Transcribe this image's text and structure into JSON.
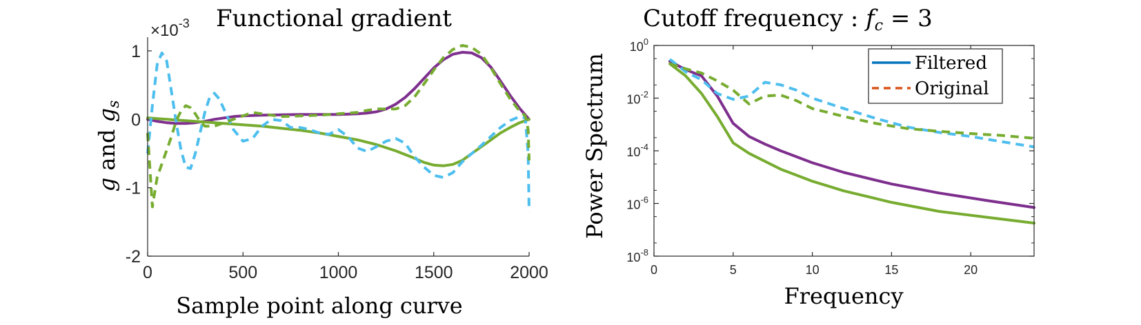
{
  "chart_data": [
    {
      "type": "line",
      "title": "Functional gradient",
      "xlabel": "Sample point along curve",
      "ylabel": "g and g_s",
      "ylabel_main": "g",
      "ylabel_join": " and ",
      "ylabel_sub_base": "g",
      "ylabel_sub": "s",
      "exponent_prefix": "×10",
      "exponent_power": "-3",
      "xlim": [
        0,
        2000
      ],
      "ylim": [
        -2,
        1.2
      ],
      "xticks": [
        0,
        500,
        1000,
        1500,
        2000
      ],
      "xtick_labels": [
        "0",
        "500",
        "1000",
        "1500",
        "2000"
      ],
      "yticks": [
        1,
        0,
        -1,
        -2
      ],
      "ytick_labels": [
        "1",
        "0",
        "-1",
        "-2"
      ],
      "grid": false,
      "series": [
        {
          "color": "#7E2F8E",
          "style": "solid",
          "x": [
            0,
            50,
            100,
            150,
            200,
            250,
            300,
            350,
            400,
            450,
            500,
            600,
            700,
            800,
            900,
            1000,
            1100,
            1150,
            1200,
            1250,
            1300,
            1350,
            1400,
            1450,
            1500,
            1550,
            1600,
            1650,
            1700,
            1750,
            1800,
            1850,
            1900,
            1950,
            2000
          ],
          "y": [
            0.0,
            -0.03,
            -0.05,
            -0.06,
            -0.06,
            -0.05,
            -0.03,
            0.0,
            0.02,
            0.04,
            0.05,
            0.06,
            0.065,
            0.07,
            0.07,
            0.07,
            0.08,
            0.09,
            0.11,
            0.15,
            0.22,
            0.32,
            0.45,
            0.6,
            0.75,
            0.87,
            0.95,
            0.98,
            0.97,
            0.9,
            0.76,
            0.56,
            0.35,
            0.16,
            0.0
          ]
        },
        {
          "color": "#77AC30",
          "style": "solid",
          "x": [
            0,
            100,
            200,
            300,
            400,
            500,
            600,
            700,
            800,
            900,
            1000,
            1100,
            1200,
            1300,
            1400,
            1450,
            1500,
            1550,
            1600,
            1650,
            1700,
            1750,
            1800,
            1850,
            1900,
            1950,
            2000
          ],
          "y": [
            0.02,
            0.0,
            -0.02,
            -0.04,
            -0.06,
            -0.08,
            -0.1,
            -0.13,
            -0.16,
            -0.2,
            -0.25,
            -0.3,
            -0.37,
            -0.46,
            -0.57,
            -0.63,
            -0.67,
            -0.68,
            -0.66,
            -0.6,
            -0.5,
            -0.4,
            -0.3,
            -0.2,
            -0.12,
            -0.05,
            0.0
          ]
        },
        {
          "color": "#4DBEEE",
          "style": "dashed",
          "x": [
            0,
            25,
            50,
            75,
            100,
            125,
            150,
            175,
            200,
            225,
            250,
            275,
            300,
            325,
            350,
            375,
            400,
            450,
            500,
            550,
            600,
            650,
            700,
            750,
            800,
            850,
            900,
            950,
            1000,
            1050,
            1100,
            1150,
            1200,
            1250,
            1300,
            1350,
            1400,
            1450,
            1500,
            1550,
            1600,
            1650,
            1700,
            1750,
            1800,
            1850,
            1900,
            1950,
            1980,
            1995,
            2000
          ],
          "y": [
            -0.5,
            0.2,
            0.8,
            0.97,
            0.85,
            0.4,
            -0.05,
            -0.45,
            -0.7,
            -0.72,
            -0.5,
            -0.2,
            0.1,
            0.32,
            0.38,
            0.3,
            0.15,
            -0.15,
            -0.32,
            -0.28,
            -0.1,
            0.0,
            -0.02,
            -0.12,
            -0.12,
            -0.15,
            -0.2,
            -0.22,
            -0.15,
            -0.25,
            -0.42,
            -0.47,
            -0.4,
            -0.32,
            -0.28,
            -0.35,
            -0.55,
            -0.7,
            -0.82,
            -0.85,
            -0.78,
            -0.62,
            -0.5,
            -0.38,
            -0.25,
            -0.12,
            -0.02,
            0.04,
            0.02,
            -0.5,
            -1.35
          ]
        },
        {
          "color": "#77AC30",
          "style": "dashed",
          "x": [
            0,
            25,
            50,
            75,
            100,
            125,
            150,
            175,
            200,
            225,
            250,
            275,
            300,
            350,
            400,
            450,
            500,
            550,
            600,
            700,
            800,
            900,
            1000,
            1100,
            1150,
            1200,
            1250,
            1300,
            1350,
            1400,
            1450,
            1500,
            1550,
            1600,
            1650,
            1700,
            1750,
            1800,
            1850,
            1900,
            1950,
            1980,
            1995,
            2000
          ],
          "y": [
            -0.2,
            -1.28,
            -0.85,
            -0.65,
            -0.45,
            -0.25,
            -0.02,
            0.12,
            0.2,
            0.17,
            0.08,
            -0.03,
            -0.1,
            -0.1,
            -0.05,
            0.0,
            0.05,
            0.1,
            0.08,
            0.04,
            0.05,
            0.06,
            0.08,
            0.1,
            0.13,
            0.15,
            0.15,
            0.15,
            0.2,
            0.33,
            0.52,
            0.72,
            0.9,
            1.02,
            1.08,
            1.05,
            0.95,
            0.75,
            0.52,
            0.3,
            0.12,
            0.05,
            -0.15,
            -0.6
          ]
        }
      ]
    },
    {
      "type": "line",
      "title_prefix": "Cutoff frequency : ",
      "title_math_var": "f",
      "title_math_sub": "c",
      "title_math_tail": " = 3",
      "xlabel": "Frequency",
      "ylabel": "Power Spectrum",
      "yscale": "log",
      "xlim": [
        0,
        24
      ],
      "ylim": [
        1e-08,
        1
      ],
      "xticks": [
        0,
        5,
        10,
        15,
        20
      ],
      "xtick_labels": [
        "0",
        "5",
        "10",
        "15",
        "20"
      ],
      "yticks": [
        0,
        -2,
        -4,
        -6,
        -8
      ],
      "ytick_base": "10",
      "ytick_exponents": [
        "0",
        "-2",
        "-4",
        "-6",
        "-8"
      ],
      "grid": false,
      "legend_position": "top-right",
      "legend": [
        {
          "label": "Filtered",
          "color": "#0072BD",
          "style": "solid"
        },
        {
          "label": "Original",
          "color": "#D95319",
          "style": "dashed"
        }
      ],
      "series": [
        {
          "color": "#7E2F8E",
          "style": "solid",
          "x": [
            1,
            2,
            3,
            4,
            5,
            6,
            7,
            8,
            10,
            12,
            15,
            18,
            21,
            24
          ],
          "y": [
            0.25,
            0.12,
            0.07,
            0.012,
            0.0011,
            0.00035,
            0.00018,
            0.0001,
            3.5e-05,
            1.5e-05,
            5.5e-06,
            2.5e-06,
            1.3e-06,
            7e-07
          ]
        },
        {
          "color": "#77AC30",
          "style": "solid",
          "x": [
            1,
            2,
            3,
            4,
            5,
            6,
            7,
            8,
            10,
            12,
            15,
            18,
            21,
            24
          ],
          "y": [
            0.2,
            0.07,
            0.015,
            0.002,
            0.0002,
            8e-05,
            4e-05,
            2e-05,
            7e-06,
            3e-06,
            1.1e-06,
            5e-07,
            3e-07,
            1.8e-07
          ]
        },
        {
          "color": "#4DBEEE",
          "style": "dashed",
          "x": [
            1,
            2,
            3,
            4,
            5,
            6,
            7,
            8,
            9,
            10,
            12,
            14,
            16,
            18,
            20,
            22,
            24
          ],
          "y": [
            0.3,
            0.1,
            0.05,
            0.015,
            0.009,
            0.012,
            0.04,
            0.032,
            0.02,
            0.01,
            0.004,
            0.0017,
            0.0008,
            0.0005,
            0.00035,
            0.00022,
            0.00014
          ]
        },
        {
          "color": "#77AC30",
          "style": "dashed",
          "x": [
            1,
            2,
            3,
            4,
            5,
            6,
            7,
            8,
            9,
            10,
            12,
            14,
            16,
            18,
            20,
            22,
            24
          ],
          "y": [
            0.2,
            0.13,
            0.09,
            0.045,
            0.02,
            0.006,
            0.012,
            0.013,
            0.008,
            0.004,
            0.002,
            0.0011,
            0.0007,
            0.00055,
            0.00045,
            0.00038,
            0.0003
          ]
        }
      ]
    }
  ]
}
